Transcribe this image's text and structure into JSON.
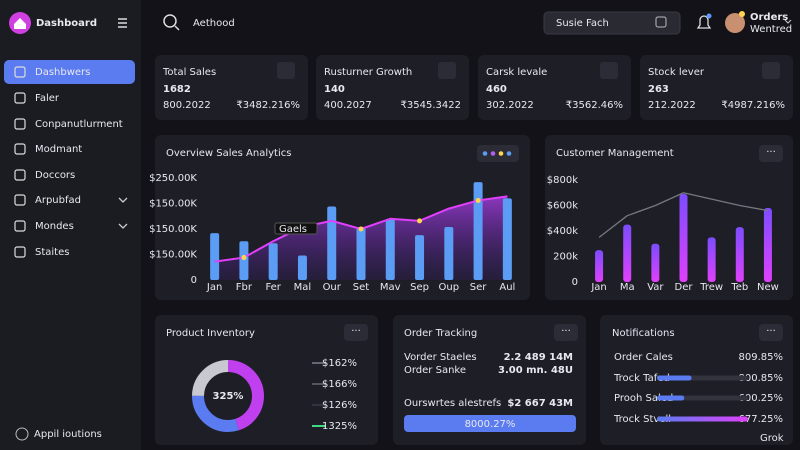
{
  "sidebar": {
    "brand": "Dashboard",
    "nav": [
      "Dashbwers",
      "Faler",
      "Conpanutlurment",
      "Modmant",
      "Doccors",
      "Arpubfad",
      "Mondes",
      "Staites"
    ],
    "footer": "Appil ioutions"
  },
  "topbar": {
    "search": "Aethood",
    "search_box": "Susie Fach",
    "user_title": "Orders",
    "user_sub": "Wentred"
  },
  "stats": [
    {
      "title": "Total Sales",
      "value": "1682",
      "sub": "800.2022",
      "change": "₹3482.216%",
      "change_color": "#3ddc84"
    },
    {
      "title": "Rusturner Growth",
      "value": "140",
      "sub": "400.2027",
      "change": "₹3545.3422",
      "change_color": "#3ddc84"
    },
    {
      "title": "Carsk levale",
      "value": "460",
      "sub": "302.2022",
      "change": "₹3562.46%",
      "change_color": "#3ddc84"
    },
    {
      "title": "Stock lever",
      "value": "263",
      "sub": "212.2022",
      "change": "₹4987.216%",
      "change_color": "#ff5252"
    }
  ],
  "overview": {
    "title": "Overview Sales Analytics",
    "type": "bar",
    "y_labels": [
      "$250.00K",
      "$150.00K",
      "$150.00K",
      "$150.00K",
      "0"
    ],
    "ylim": [
      0,
      250
    ],
    "categories": [
      "Jan",
      "Fbr",
      "Fer",
      "Mal",
      "Our",
      "Set",
      "Mav",
      "Sep",
      "Oup",
      "Ser",
      "Aul"
    ],
    "bars": {
      "color": "#5b9cf5",
      "values": [
        115,
        95,
        90,
        60,
        180,
        130,
        150,
        110,
        130,
        240,
        200
      ]
    },
    "line": {
      "color": "#e040fb",
      "values": [
        45,
        55,
        95,
        130,
        145,
        125,
        150,
        145,
        175,
        195,
        205
      ]
    },
    "callout": "Gaels"
  },
  "customer": {
    "title": "Customer Management",
    "type": "bar",
    "ylim": [
      0,
      800
    ],
    "yticks": [
      {
        "value": 800,
        "label": "$800k"
      },
      {
        "value": 600,
        "label": "$600k"
      },
      {
        "value": 400,
        "label": "$400k"
      },
      {
        "value": 200,
        "label": "200k"
      },
      0
    ],
    "categories": [
      "Jan",
      "Ma",
      "Var",
      "Der",
      "Trew",
      "Teb",
      "New"
    ],
    "bars": {
      "values": [
        250,
        450,
        300,
        690,
        350,
        430,
        580
      ]
    },
    "line": {
      "color": "#777780",
      "values": [
        350,
        520,
        600,
        700,
        650,
        600,
        560
      ]
    }
  },
  "inventory": {
    "title": "Product Inventory",
    "center": "325%",
    "segments": [
      {
        "color": "#c040f0",
        "value": 45
      },
      {
        "color": "#5b7cf0",
        "value": 30
      },
      {
        "color": "#c8c8d0",
        "value": 25
      }
    ],
    "legend": [
      {
        "label": "$162%",
        "color": "#666670"
      },
      {
        "label": "$166%",
        "color": "#555560"
      },
      {
        "label": "$126%",
        "color": "#333340"
      },
      {
        "label": "1325%",
        "color": "#3ddc84"
      }
    ]
  },
  "orders": {
    "title": "Order Tracking",
    "rows": [
      {
        "label": "Vorder Staeles",
        "value": "2.2 489 14M",
        "color": "#ffffff"
      },
      {
        "label": "Order Sanke",
        "value": "3.00 mn. 48U",
        "color": "#3ddc84"
      },
      {
        "label": "Ourswrtes alestrefs",
        "value": "$2 667 43M",
        "color": "#ffffff"
      }
    ],
    "button": "8000.27%"
  },
  "notifications": {
    "title": "Notifications",
    "rows": [
      {
        "label": "Order Cales",
        "value": "809.85%"
      },
      {
        "label": "Trock Tafed",
        "value": "800.85%",
        "progress": 38,
        "color": "#5b7cf0"
      },
      {
        "label": "Prooh Saled",
        "value": "600.25%",
        "progress": 30,
        "color": "#5b7cf0"
      },
      {
        "label": "Trock Stvell",
        "value": "677.25%",
        "progress": 100,
        "color": "#e040fb"
      }
    ]
  },
  "watermark": "Grok"
}
